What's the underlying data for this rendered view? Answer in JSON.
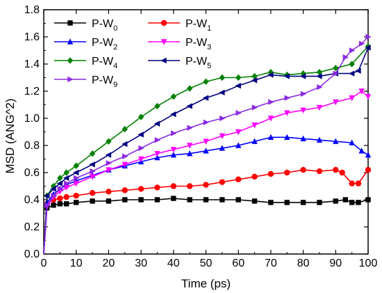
{
  "chart_data": {
    "type": "line",
    "xlabel": "Time (ps)",
    "ylabel": "MSD (ANG^2)",
    "xlim": [
      0,
      100
    ],
    "ylim": [
      0,
      1.8
    ],
    "xticks": [
      0,
      10,
      20,
      30,
      40,
      50,
      60,
      70,
      80,
      90,
      100
    ],
    "yticks": [
      0.0,
      0.2,
      0.4,
      0.6,
      0.8,
      1.0,
      1.2,
      1.4,
      1.6,
      1.8
    ],
    "grid": false,
    "legend_position": "top-left",
    "series": [
      {
        "name": "P-W",
        "sub": "0",
        "color": "#000000",
        "marker": "square",
        "x": [
          0,
          1,
          3,
          5,
          7,
          10,
          15,
          20,
          25,
          30,
          35,
          40,
          45,
          50,
          55,
          60,
          65,
          70,
          75,
          80,
          85,
          90,
          93,
          95,
          97,
          100
        ],
        "y": [
          0,
          0.34,
          0.36,
          0.37,
          0.37,
          0.38,
          0.39,
          0.39,
          0.4,
          0.4,
          0.4,
          0.41,
          0.4,
          0.4,
          0.4,
          0.4,
          0.39,
          0.38,
          0.38,
          0.38,
          0.38,
          0.39,
          0.4,
          0.38,
          0.38,
          0.4
        ]
      },
      {
        "name": "P-W",
        "sub": "1",
        "color": "#ff0000",
        "marker": "circle",
        "x": [
          0,
          1,
          3,
          5,
          7,
          10,
          15,
          20,
          25,
          30,
          35,
          40,
          45,
          50,
          55,
          60,
          65,
          70,
          75,
          80,
          85,
          90,
          92,
          95,
          97,
          100
        ],
        "y": [
          0,
          0.37,
          0.4,
          0.41,
          0.42,
          0.43,
          0.45,
          0.46,
          0.47,
          0.48,
          0.49,
          0.5,
          0.5,
          0.51,
          0.53,
          0.55,
          0.57,
          0.59,
          0.6,
          0.62,
          0.61,
          0.62,
          0.6,
          0.52,
          0.52,
          0.62
        ]
      },
      {
        "name": "P-W",
        "sub": "2",
        "color": "#0000ff",
        "marker": "triangle-up",
        "x": [
          0,
          1,
          3,
          5,
          7,
          10,
          15,
          20,
          25,
          30,
          35,
          40,
          45,
          50,
          55,
          60,
          65,
          70,
          75,
          80,
          85,
          90,
          95,
          98,
          100
        ],
        "y": [
          0,
          0.38,
          0.44,
          0.48,
          0.51,
          0.54,
          0.58,
          0.62,
          0.65,
          0.68,
          0.71,
          0.73,
          0.74,
          0.76,
          0.78,
          0.8,
          0.83,
          0.86,
          0.86,
          0.85,
          0.84,
          0.83,
          0.82,
          0.76,
          0.73
        ]
      },
      {
        "name": "P-W",
        "sub": "3",
        "color": "#ff00ff",
        "marker": "triangle-down",
        "x": [
          0,
          1,
          3,
          5,
          7,
          10,
          15,
          20,
          25,
          30,
          35,
          40,
          45,
          50,
          55,
          60,
          65,
          70,
          75,
          80,
          85,
          90,
          95,
          98,
          100
        ],
        "y": [
          0,
          0.35,
          0.42,
          0.46,
          0.49,
          0.52,
          0.57,
          0.62,
          0.66,
          0.7,
          0.74,
          0.77,
          0.8,
          0.83,
          0.87,
          0.9,
          0.95,
          1.0,
          1.04,
          1.06,
          1.08,
          1.12,
          1.15,
          1.2,
          1.16
        ]
      },
      {
        "name": "P-W",
        "sub": "4",
        "color": "#008000",
        "marker": "diamond",
        "x": [
          0,
          1,
          3,
          5,
          7,
          10,
          15,
          20,
          25,
          30,
          35,
          40,
          45,
          50,
          55,
          60,
          65,
          70,
          75,
          80,
          85,
          90,
          95,
          100
        ],
        "y": [
          0,
          0.43,
          0.5,
          0.56,
          0.6,
          0.65,
          0.74,
          0.83,
          0.92,
          1.01,
          1.09,
          1.16,
          1.22,
          1.27,
          1.3,
          1.3,
          1.31,
          1.34,
          1.32,
          1.33,
          1.34,
          1.37,
          1.4,
          1.53
        ]
      },
      {
        "name": "P-W",
        "sub": "5",
        "color": "#000080",
        "marker": "triangle-left",
        "x": [
          0,
          1,
          3,
          5,
          7,
          10,
          15,
          20,
          25,
          30,
          35,
          40,
          45,
          50,
          55,
          60,
          65,
          70,
          75,
          80,
          85,
          90,
          95,
          97,
          100
        ],
        "y": [
          0,
          0.43,
          0.48,
          0.52,
          0.56,
          0.6,
          0.66,
          0.73,
          0.81,
          0.88,
          0.96,
          1.03,
          1.09,
          1.15,
          1.19,
          1.24,
          1.28,
          1.32,
          1.31,
          1.31,
          1.31,
          1.33,
          1.33,
          1.35,
          1.52
        ]
      },
      {
        "name": "P-W",
        "sub": "9",
        "color": "#8a2be2",
        "marker": "triangle-right",
        "x": [
          0,
          1,
          3,
          5,
          7,
          10,
          15,
          20,
          25,
          30,
          35,
          40,
          45,
          50,
          55,
          60,
          65,
          70,
          75,
          80,
          85,
          90,
          93,
          95,
          98,
          100
        ],
        "y": [
          0,
          0.36,
          0.43,
          0.48,
          0.52,
          0.56,
          0.61,
          0.67,
          0.72,
          0.78,
          0.84,
          0.89,
          0.93,
          0.97,
          1.0,
          1.04,
          1.08,
          1.12,
          1.15,
          1.18,
          1.23,
          1.33,
          1.45,
          1.5,
          1.55,
          1.6
        ]
      }
    ]
  }
}
